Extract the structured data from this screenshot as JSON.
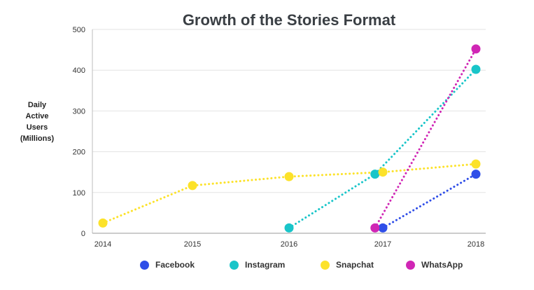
{
  "chart_data": {
    "type": "scatter",
    "title": "Growth of the Stories Format",
    "ylabel_lines": [
      "Daily",
      "Active",
      "Users",
      "(Millions)"
    ],
    "xlabel": "",
    "x_ticks": [
      "2014",
      "2015",
      "2016",
      "2017",
      "2018"
    ],
    "y_ticks": [
      "0",
      "100",
      "200",
      "300",
      "400",
      "500"
    ],
    "ylim": [
      0,
      500
    ],
    "grid": "horizontal",
    "legend_position": "bottom",
    "series": [
      {
        "name": "Facebook",
        "color": "#2f4ee8",
        "points": [
          {
            "x": "2017-01",
            "y": 13
          },
          {
            "x": "2018-01",
            "y": 145
          }
        ]
      },
      {
        "name": "Instagram",
        "color": "#19c5c9",
        "points": [
          {
            "x": "2016-01",
            "y": 13
          },
          {
            "x": "2016-12",
            "y": 145
          },
          {
            "x": "2018-01",
            "y": 402
          }
        ]
      },
      {
        "name": "Snapchat",
        "color": "#fce22a",
        "points": [
          {
            "x": "2014-01",
            "y": 25
          },
          {
            "x": "2015-01",
            "y": 117
          },
          {
            "x": "2016-01",
            "y": 139
          },
          {
            "x": "2017-01",
            "y": 150
          },
          {
            "x": "2018-01",
            "y": 170
          }
        ]
      },
      {
        "name": "WhatsApp",
        "color": "#d026b5",
        "points": [
          {
            "x": "2016-12",
            "y": 13
          },
          {
            "x": "2018-01",
            "y": 452
          }
        ]
      }
    ]
  }
}
